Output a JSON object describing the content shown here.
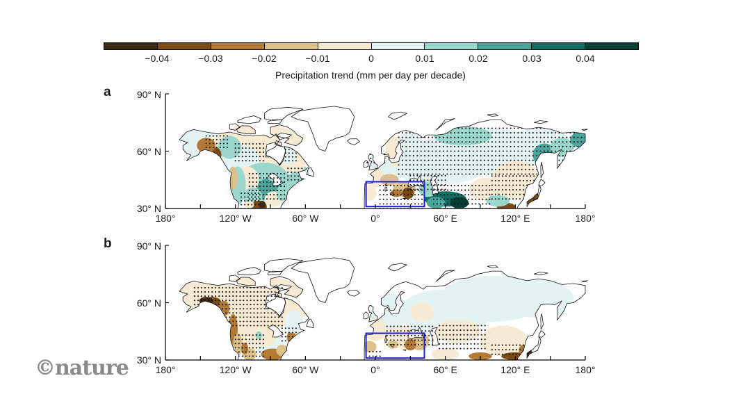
{
  "colors": {
    "scale": [
      "#3e2a12",
      "#7b4b14",
      "#b37a35",
      "#dcc08a",
      "#f6ead2",
      "#e3f3f1",
      "#9bd6cc",
      "#4aa69c",
      "#0f6e64",
      "#063f36"
    ],
    "box": "#1a1adf",
    "dots": "#111111",
    "coast": "#111111"
  },
  "colorbar": {
    "ticks": [
      "−0.04",
      "−0.03",
      "−0.02",
      "−0.01",
      "0",
      "0.01",
      "0.02",
      "0.03",
      "0.04"
    ],
    "title": "Precipitation trend (mm per day per decade)"
  },
  "panels": [
    {
      "letter": "a"
    },
    {
      "letter": "b"
    }
  ],
  "axes": {
    "y": [
      "90° N",
      "60° N",
      "30° N"
    ],
    "x": [
      "180°",
      "120° W",
      "60° W",
      "0°",
      "60° E",
      "120° E",
      "180°"
    ]
  },
  "region_box": {
    "lon": [
      -8,
      42
    ],
    "lat": [
      31,
      44
    ]
  },
  "logo": "©nature"
}
